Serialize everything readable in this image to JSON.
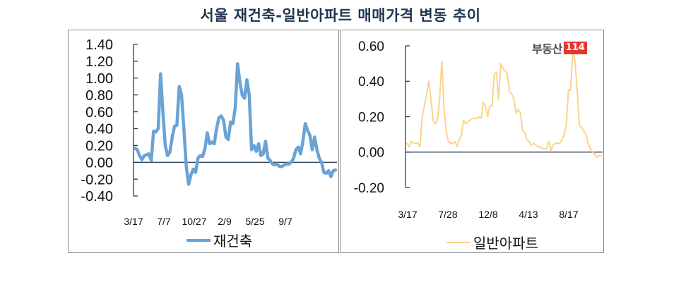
{
  "title": "서울 재건축-일반아파트 매매가격 변동 추이",
  "logo": {
    "text": "부동산",
    "badge": "114",
    "badge_color": "#e8352b"
  },
  "chart_data": [
    {
      "type": "line",
      "title": "재건축",
      "xlabel": "",
      "ylabel": "",
      "ylim": [
        -0.4,
        1.4
      ],
      "yticks": [
        "1.40",
        "1.20",
        "1.00",
        "0.80",
        "0.60",
        "0.40",
        "0.20",
        "0.00",
        "-0.20",
        "-0.40"
      ],
      "xtick_labels": [
        "3/17",
        "7/7",
        "10/27",
        "2/9",
        "5/25",
        "9/7"
      ],
      "legend": "재건축",
      "legend_position": "bottom",
      "grid": false,
      "color": "#6aa3d5",
      "series": [
        {
          "name": "재건축",
          "values": [
            0.17,
            0.15,
            0.08,
            0.03,
            0.08,
            0.09,
            0.1,
            0.02,
            0.37,
            0.36,
            0.4,
            1.05,
            0.6,
            0.2,
            0.08,
            0.12,
            0.3,
            0.43,
            0.44,
            0.9,
            0.8,
            0.4,
            -0.05,
            -0.26,
            -0.15,
            -0.08,
            -0.12,
            0.05,
            0.08,
            0.07,
            0.16,
            0.35,
            0.22,
            0.24,
            0.22,
            0.4,
            0.53,
            0.55,
            0.5,
            0.3,
            0.27,
            0.48,
            0.46,
            0.65,
            1.17,
            0.95,
            0.8,
            0.76,
            0.98,
            0.8,
            0.15,
            0.2,
            0.13,
            0.22,
            0.08,
            0.1,
            0.25,
            0.05,
            0.02,
            -0.02,
            -0.03,
            -0.02,
            -0.05,
            -0.05,
            -0.03,
            -0.02,
            -0.02,
            0.0,
            0.05,
            0.15,
            0.18,
            0.1,
            0.25,
            0.46,
            0.38,
            0.32,
            0.15,
            0.3,
            0.15,
            0.05,
            0.0,
            -0.12,
            -0.13,
            -0.1,
            -0.17,
            -0.1,
            -0.09
          ]
        }
      ]
    },
    {
      "type": "line",
      "title": "일반아파트",
      "xlabel": "",
      "ylabel": "",
      "ylim": [
        -0.2,
        0.6
      ],
      "yticks": [
        "0.60",
        "0.40",
        "0.20",
        "0.00",
        "-0.20"
      ],
      "xtick_labels": [
        "3/17",
        "7/28",
        "12/8",
        "4/13",
        "8/17"
      ],
      "legend": "일반아파트",
      "legend_position": "bottom",
      "grid": false,
      "color": "#fbd38d",
      "series": [
        {
          "name": "일반아파트",
          "values": [
            0.05,
            0.03,
            0.06,
            0.05,
            0.05,
            0.05,
            0.03,
            0.2,
            0.26,
            0.32,
            0.4,
            0.3,
            0.18,
            0.16,
            0.18,
            0.3,
            0.51,
            0.25,
            0.12,
            0.06,
            0.05,
            0.05,
            0.06,
            0.03,
            0.07,
            0.1,
            0.18,
            0.16,
            0.17,
            0.18,
            0.19,
            0.19,
            0.19,
            0.2,
            0.19,
            0.28,
            0.26,
            0.2,
            0.26,
            0.26,
            0.44,
            0.45,
            0.3,
            0.5,
            0.47,
            0.46,
            0.44,
            0.34,
            0.33,
            0.3,
            0.22,
            0.24,
            0.22,
            0.12,
            0.11,
            0.07,
            0.06,
            0.04,
            0.05,
            0.04,
            0.03,
            0.03,
            0.02,
            0.02,
            0.02,
            0.06,
            0.01,
            0.04,
            0.05,
            0.05,
            0.05,
            0.07,
            0.1,
            0.15,
            0.35,
            0.35,
            0.57,
            0.52,
            0.35,
            0.15,
            0.14,
            0.12,
            0.1,
            0.05,
            0.02,
            0.0,
            -0.01,
            -0.03,
            -0.02,
            -0.02
          ]
        }
      ]
    }
  ]
}
